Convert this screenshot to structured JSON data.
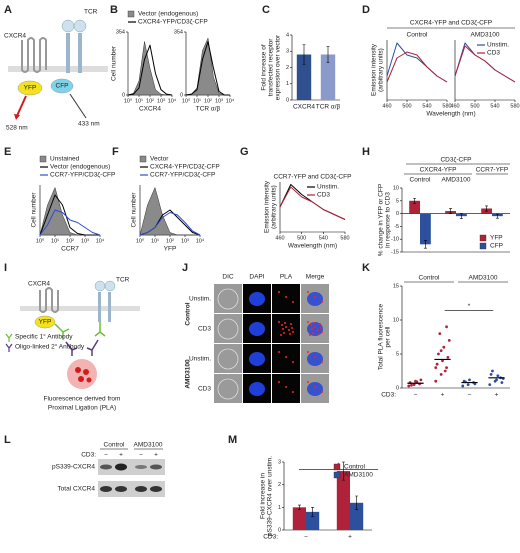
{
  "panel_labels": [
    "A",
    "B",
    "C",
    "D",
    "E",
    "F",
    "G",
    "H",
    "I",
    "J",
    "K",
    "L",
    "M"
  ],
  "panel_A": {
    "cxcr4": "CXCR4",
    "tcr": "TCR",
    "yfp": "YFP",
    "cfp": "CFP",
    "em_yfp": "528 nm",
    "em_cfp": "433 nm"
  },
  "panel_I": {
    "cxcr4": "CXCR4",
    "tcr": "TCR",
    "yfp": "YFP",
    "primary": "Specific 1° Antibody",
    "secondary": "Oligo-linked 2° Antibody",
    "caption": [
      "Fluorescence derived from",
      "Proximal Ligation (PLA)"
    ]
  },
  "panel_J": {
    "columns": [
      "DIC",
      "DAPI",
      "PLA",
      "Merge"
    ],
    "rows": [
      "Unstim.",
      "CD3",
      "Unstim.",
      "CD3"
    ],
    "groups": [
      "Control",
      "AMD3100"
    ]
  },
  "panel_L": {
    "groups": [
      "Control",
      "AMD3100"
    ],
    "treatment_label": "CD3:",
    "treatments": [
      "−",
      "+",
      "−",
      "+"
    ],
    "rows": [
      "pS339-CXCR4",
      "Total CXCR4"
    ]
  },
  "chart_data": [
    {
      "type": "line",
      "ylabel": "Cell number",
      "xlabel": "CXCR4",
      "legend": "above",
      "x": [
        0,
        0.5,
        1,
        1.5,
        2,
        2.5,
        3,
        3.5,
        4
      ],
      "series": [
        {
          "name": "Vector (endogenous)",
          "color": "#8a8a8a",
          "filled": true,
          "values": [
            0,
            10,
            80,
            300,
            150,
            30,
            5,
            0,
            0
          ]
        },
        {
          "name": "CXCR4-YFP/CD3ζ-CFP",
          "color": "#000000",
          "values": [
            0,
            5,
            40,
            200,
            280,
            120,
            30,
            5,
            0
          ]
        }
      ],
      "xlim": [
        0,
        4
      ],
      "ylim": [
        0,
        354
      ],
      "yticks": [
        0,
        354
      ],
      "xticks": [
        {
          "value": 0,
          "label": "10⁰"
        },
        {
          "value": 1,
          "label": "10¹"
        },
        {
          "value": 2,
          "label": "10²"
        },
        {
          "value": 3,
          "label": "10³"
        },
        {
          "value": 4,
          "label": "10⁴"
        }
      ]
    },
    {
      "type": "line",
      "xlabel": "TCR α/β",
      "x": [
        0,
        0.5,
        1,
        1.5,
        2,
        2.5,
        3,
        3.5,
        4
      ],
      "series": [
        {
          "color": "#8a8a8a",
          "filled": true,
          "values": [
            0,
            5,
            40,
            250,
            320,
            100,
            10,
            0,
            0
          ]
        },
        {
          "color": "#000000",
          "values": [
            0,
            5,
            30,
            200,
            300,
            150,
            20,
            0,
            0
          ]
        }
      ],
      "xlim": [
        0,
        4
      ],
      "ylim": [
        0,
        354
      ],
      "yticks": [
        0,
        354
      ],
      "xticks": [
        {
          "value": 0,
          "label": "10⁰"
        },
        {
          "value": 1,
          "label": "10¹"
        },
        {
          "value": 2,
          "label": "10²"
        },
        {
          "value": 3,
          "label": "10³"
        },
        {
          "value": 4,
          "label": "10⁴"
        }
      ]
    },
    {
      "type": "bar",
      "ylabel": [
        "Fold increase of",
        "transfected receptor",
        "expression over vector"
      ],
      "categories": [
        "CXCR4",
        "TCR α/β"
      ],
      "values": [
        2.8,
        2.8
      ],
      "errors": [
        0.6,
        0.5
      ],
      "colors": [
        "#2f4f8f",
        "#8a9acb"
      ],
      "ylim": [
        0,
        4
      ],
      "yticks": [
        0,
        1,
        2,
        3,
        4
      ]
    },
    {
      "type": "line",
      "suptitle": "CXCR4-YFP and CD3ζ-CFP",
      "title": "Control",
      "ylabel": [
        "Emission intensity",
        "(arbitrary units)"
      ],
      "xlabel": "Wavelength (nm)",
      "x": [
        460,
        480,
        500,
        520,
        540,
        560,
        580
      ],
      "series": [
        {
          "color": "#2c4f9e",
          "values": [
            0.4,
            0.95,
            0.75,
            0.7,
            0.55,
            0.4,
            0.3
          ]
        },
        {
          "color": "#b0223a",
          "values": [
            0.3,
            0.7,
            0.8,
            0.75,
            0.55,
            0.4,
            0.3
          ]
        }
      ],
      "xlim": [
        460,
        580
      ],
      "ylim": [
        0,
        1
      ],
      "xticks": [
        460,
        500,
        540,
        580
      ]
    },
    {
      "type": "line",
      "title": "AMD3100",
      "legend": "upper right",
      "x": [
        460,
        480,
        500,
        520,
        540,
        560,
        580
      ],
      "series": [
        {
          "name": "Unstim.",
          "color": "#2c4f9e",
          "values": [
            0.4,
            0.95,
            0.75,
            0.65,
            0.5,
            0.4,
            0.3
          ]
        },
        {
          "name": "CD3",
          "color": "#b0223a",
          "values": [
            0.4,
            0.9,
            0.75,
            0.65,
            0.5,
            0.4,
            0.3
          ]
        }
      ],
      "xlim": [
        460,
        580
      ],
      "ylim": [
        0,
        1
      ],
      "xticks": [
        460,
        500,
        540,
        580
      ]
    },
    {
      "type": "line",
      "ylabel": "Cell number",
      "xlabel": "CCR7",
      "legend": "above",
      "x": [
        0,
        0.5,
        1,
        1.5,
        2,
        2.5,
        3,
        3.5,
        4
      ],
      "series": [
        {
          "name": "Unstained",
          "color": "#8a8a8a",
          "filled": true,
          "values": [
            0,
            60,
            95,
            40,
            5,
            0,
            0,
            0,
            0
          ]
        },
        {
          "name": "Vector (endogenous)",
          "color": "#000000",
          "values": [
            0,
            40,
            80,
            60,
            15,
            3,
            0,
            0,
            0
          ]
        },
        {
          "name": "CCR7-YFP/CD3ζ-CFP",
          "color": "#2c4fd0",
          "values": [
            0,
            20,
            50,
            45,
            30,
            25,
            15,
            5,
            0
          ]
        }
      ],
      "xlim": [
        0,
        4
      ],
      "ylim": [
        0,
        100
      ],
      "xticks": [
        {
          "value": 0,
          "label": "10⁰"
        },
        {
          "value": 1,
          "label": "10¹"
        },
        {
          "value": 2,
          "label": "10²"
        },
        {
          "value": 3,
          "label": "10³"
        },
        {
          "value": 4,
          "label": "10⁴"
        }
      ]
    },
    {
      "type": "line",
      "ylabel": "Cell number",
      "xlabel": "YFP",
      "legend": "above",
      "x": [
        0,
        0.5,
        1,
        1.5,
        2,
        2.5,
        3,
        3.5,
        4
      ],
      "series": [
        {
          "name": "Vector",
          "color": "#8a8a8a",
          "filled": true,
          "values": [
            0,
            60,
            95,
            40,
            5,
            0,
            0,
            0,
            0
          ]
        },
        {
          "name": "CXCR4-YFP/CD3ζ-CFP",
          "color": "#000000",
          "values": [
            0,
            5,
            15,
            40,
            50,
            35,
            20,
            5,
            0
          ]
        },
        {
          "name": "CCR7-YFP/CD3ζ-CFP",
          "color": "#2c4fd0",
          "values": [
            0,
            5,
            15,
            35,
            45,
            40,
            25,
            8,
            0
          ]
        }
      ],
      "xlim": [
        0,
        4
      ],
      "ylim": [
        0,
        100
      ],
      "xticks": [
        {
          "value": 0,
          "label": "10⁰"
        },
        {
          "value": 1,
          "label": "10¹"
        },
        {
          "value": 2,
          "label": "10²"
        },
        {
          "value": 3,
          "label": "10³"
        },
        {
          "value": 4,
          "label": "10⁴"
        }
      ]
    },
    {
      "type": "line",
      "title": "CCR7-YFP and CD3ζ-CFP",
      "ylabel": [
        "Emission intensity",
        "(arbitrary units)"
      ],
      "xlabel": "Wavelength (nm)",
      "legend": "upper right",
      "x": [
        460,
        480,
        500,
        520,
        540,
        560,
        580
      ],
      "series": [
        {
          "name": "Unstim.",
          "color": "#000000",
          "values": [
            0.5,
            0.95,
            0.75,
            0.6,
            0.45,
            0.35,
            0.25
          ]
        },
        {
          "name": "CD3",
          "color": "#b0223a",
          "values": [
            0.5,
            0.9,
            0.7,
            0.6,
            0.45,
            0.35,
            0.25
          ]
        }
      ],
      "xlim": [
        460,
        580
      ],
      "ylim": [
        0,
        1
      ],
      "xticks": [
        460,
        500,
        540,
        580
      ]
    },
    {
      "type": "bar",
      "title": "CD3ζ-CFP",
      "ylabel": [
        "% change in YFP or CFP",
        "in response to CD3"
      ],
      "legend": "lower right",
      "groups": [
        {
          "label": "CXCR4-YFP",
          "categories": [
            "Control",
            "AMD3100"
          ]
        },
        {
          "label": "CCR7-YFP",
          "categories": [
            null
          ]
        }
      ],
      "series": [
        {
          "name": "YFP",
          "color": "#b0223a",
          "values": [
            5,
            1,
            2
          ],
          "errors": [
            1,
            1,
            1
          ]
        },
        {
          "name": "CFP",
          "color": "#2c4f9e",
          "values": [
            -12,
            -1,
            -1
          ],
          "errors": [
            1.5,
            1,
            0.8
          ]
        }
      ],
      "ylim": [
        -15,
        10
      ],
      "yticks": [
        -15,
        -10,
        -5,
        0,
        5,
        10
      ]
    },
    {
      "type": "strip",
      "ylabel": [
        "Total PLA fluorescence",
        "per cell"
      ],
      "category_label": "CD3:",
      "groups": [
        {
          "label": "Control",
          "categories": [
            "−",
            "+"
          ]
        },
        {
          "label": "AMD3100",
          "categories": [
            "−",
            "+"
          ]
        }
      ],
      "colors": [
        "#b0223a",
        "#b0223a",
        "#2c4f9e",
        "#2c4f9e"
      ],
      "points": [
        [
          0.3,
          0.5,
          0.6,
          0.8,
          1.0,
          1.2,
          0.4,
          0.9
        ],
        [
          1,
          2,
          3,
          3.5,
          4,
          4.5,
          5,
          6,
          7,
          8,
          2.5,
          3,
          5.5,
          9
        ],
        [
          0.3,
          0.5,
          0.8,
          1,
          1.2,
          0.6,
          0.9
        ],
        [
          0.5,
          1,
          1.5,
          2,
          1.2,
          0.8,
          2.5,
          1.8,
          1.4
        ]
      ],
      "means": [
        0.7,
        4.2,
        0.8,
        1.5
      ],
      "annotations": [
        "*"
      ],
      "ylim": [
        0,
        15
      ],
      "yticks": [
        0,
        5,
        10,
        15
      ]
    },
    {
      "type": "bar",
      "ylabel": [
        "Fold increase in",
        "pS339-CXCR4 over unstim."
      ],
      "category_label": "CD3:",
      "legend": "upper right",
      "categories": [
        "−",
        "+"
      ],
      "series": [
        {
          "name": "Control",
          "color": "#b0223a",
          "values": [
            1.0,
            2.6
          ],
          "errors": [
            0.1,
            0.4
          ]
        },
        {
          "name": "AMD3100",
          "color": "#2c4f9e",
          "values": [
            0.8,
            1.2
          ],
          "errors": [
            0.2,
            0.3
          ]
        }
      ],
      "annotations": [
        "*"
      ],
      "ylim": [
        0,
        3
      ],
      "yticks": [
        0,
        1,
        2,
        3
      ]
    }
  ]
}
